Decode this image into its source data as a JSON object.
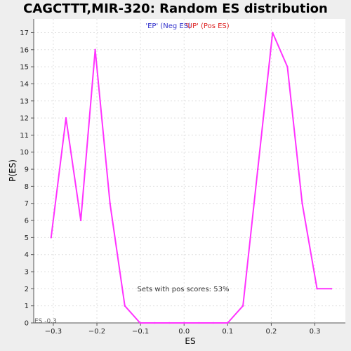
{
  "chart_data": {
    "type": "line",
    "title": "CAGCTTT,MIR-320: Random ES distribution",
    "xlabel": "ES",
    "ylabel": "P(ES)",
    "xlim": [
      -0.345,
      0.37
    ],
    "ylim": [
      0,
      17.8
    ],
    "x_ticks": [
      -0.3,
      -0.2,
      -0.1,
      0.0,
      0.1,
      0.2,
      0.3
    ],
    "x_tick_labels": [
      "-0.3",
      "-0.2",
      "-0.1",
      "0.0",
      "0.1",
      "0.2",
      "0.3"
    ],
    "y_ticks": [
      0,
      1,
      2,
      3,
      4,
      5,
      6,
      7,
      8,
      9,
      10,
      11,
      12,
      13,
      14,
      15,
      16,
      17
    ],
    "grid": true,
    "series": [
      {
        "color": "#ff33ff",
        "x": [
          -0.305,
          -0.271,
          -0.237,
          -0.204,
          -0.17,
          -0.136,
          -0.101,
          -0.067,
          -0.034,
          0.0,
          0.034,
          0.067,
          0.1,
          0.135,
          0.169,
          0.203,
          0.237,
          0.271,
          0.305,
          0.338
        ],
        "y": [
          5,
          12,
          6,
          16,
          7,
          1,
          0,
          0,
          0,
          0,
          0,
          0,
          0,
          1,
          9,
          17,
          15,
          7,
          2,
          2
        ]
      }
    ],
    "legend": {
      "neg_label": "'EP' (Neg ES)",
      "pos_label": "'UP' (Pos ES)",
      "neg_color": "#3333cc",
      "pos_color": "#dd2222"
    },
    "annotation": "Sets with pos scores: 53%",
    "corner_label": "ES -0.3"
  }
}
